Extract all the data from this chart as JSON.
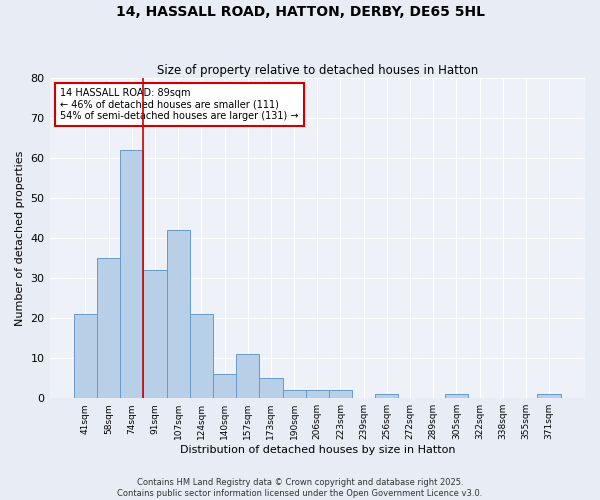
{
  "title": "14, HASSALL ROAD, HATTON, DERBY, DE65 5HL",
  "subtitle": "Size of property relative to detached houses in Hatton",
  "xlabel": "Distribution of detached houses by size in Hatton",
  "ylabel": "Number of detached properties",
  "categories": [
    "41sqm",
    "58sqm",
    "74sqm",
    "91sqm",
    "107sqm",
    "124sqm",
    "140sqm",
    "157sqm",
    "173sqm",
    "190sqm",
    "206sqm",
    "223sqm",
    "239sqm",
    "256sqm",
    "272sqm",
    "289sqm",
    "305sqm",
    "322sqm",
    "338sqm",
    "355sqm",
    "371sqm"
  ],
  "values": [
    21,
    35,
    62,
    32,
    42,
    21,
    6,
    11,
    5,
    2,
    2,
    2,
    0,
    1,
    0,
    0,
    1,
    0,
    0,
    0,
    1
  ],
  "bar_color": "#b8cfe8",
  "bar_edge_color": "#6699cc",
  "vline_x": 2.5,
  "vline_color": "#cc0000",
  "ylim": [
    0,
    80
  ],
  "yticks": [
    0,
    10,
    20,
    30,
    40,
    50,
    60,
    70,
    80
  ],
  "annotation_text": "14 HASSALL ROAD: 89sqm\n← 46% of detached houses are smaller (111)\n54% of semi-detached houses are larger (131) →",
  "annotation_box_color": "#ffffff",
  "annotation_box_edge_color": "#cc0000",
  "footer_text": "Contains HM Land Registry data © Crown copyright and database right 2025.\nContains public sector information licensed under the Open Government Licence v3.0.",
  "bg_color": "#e8edf5",
  "plot_bg_color": "#eef2f8"
}
